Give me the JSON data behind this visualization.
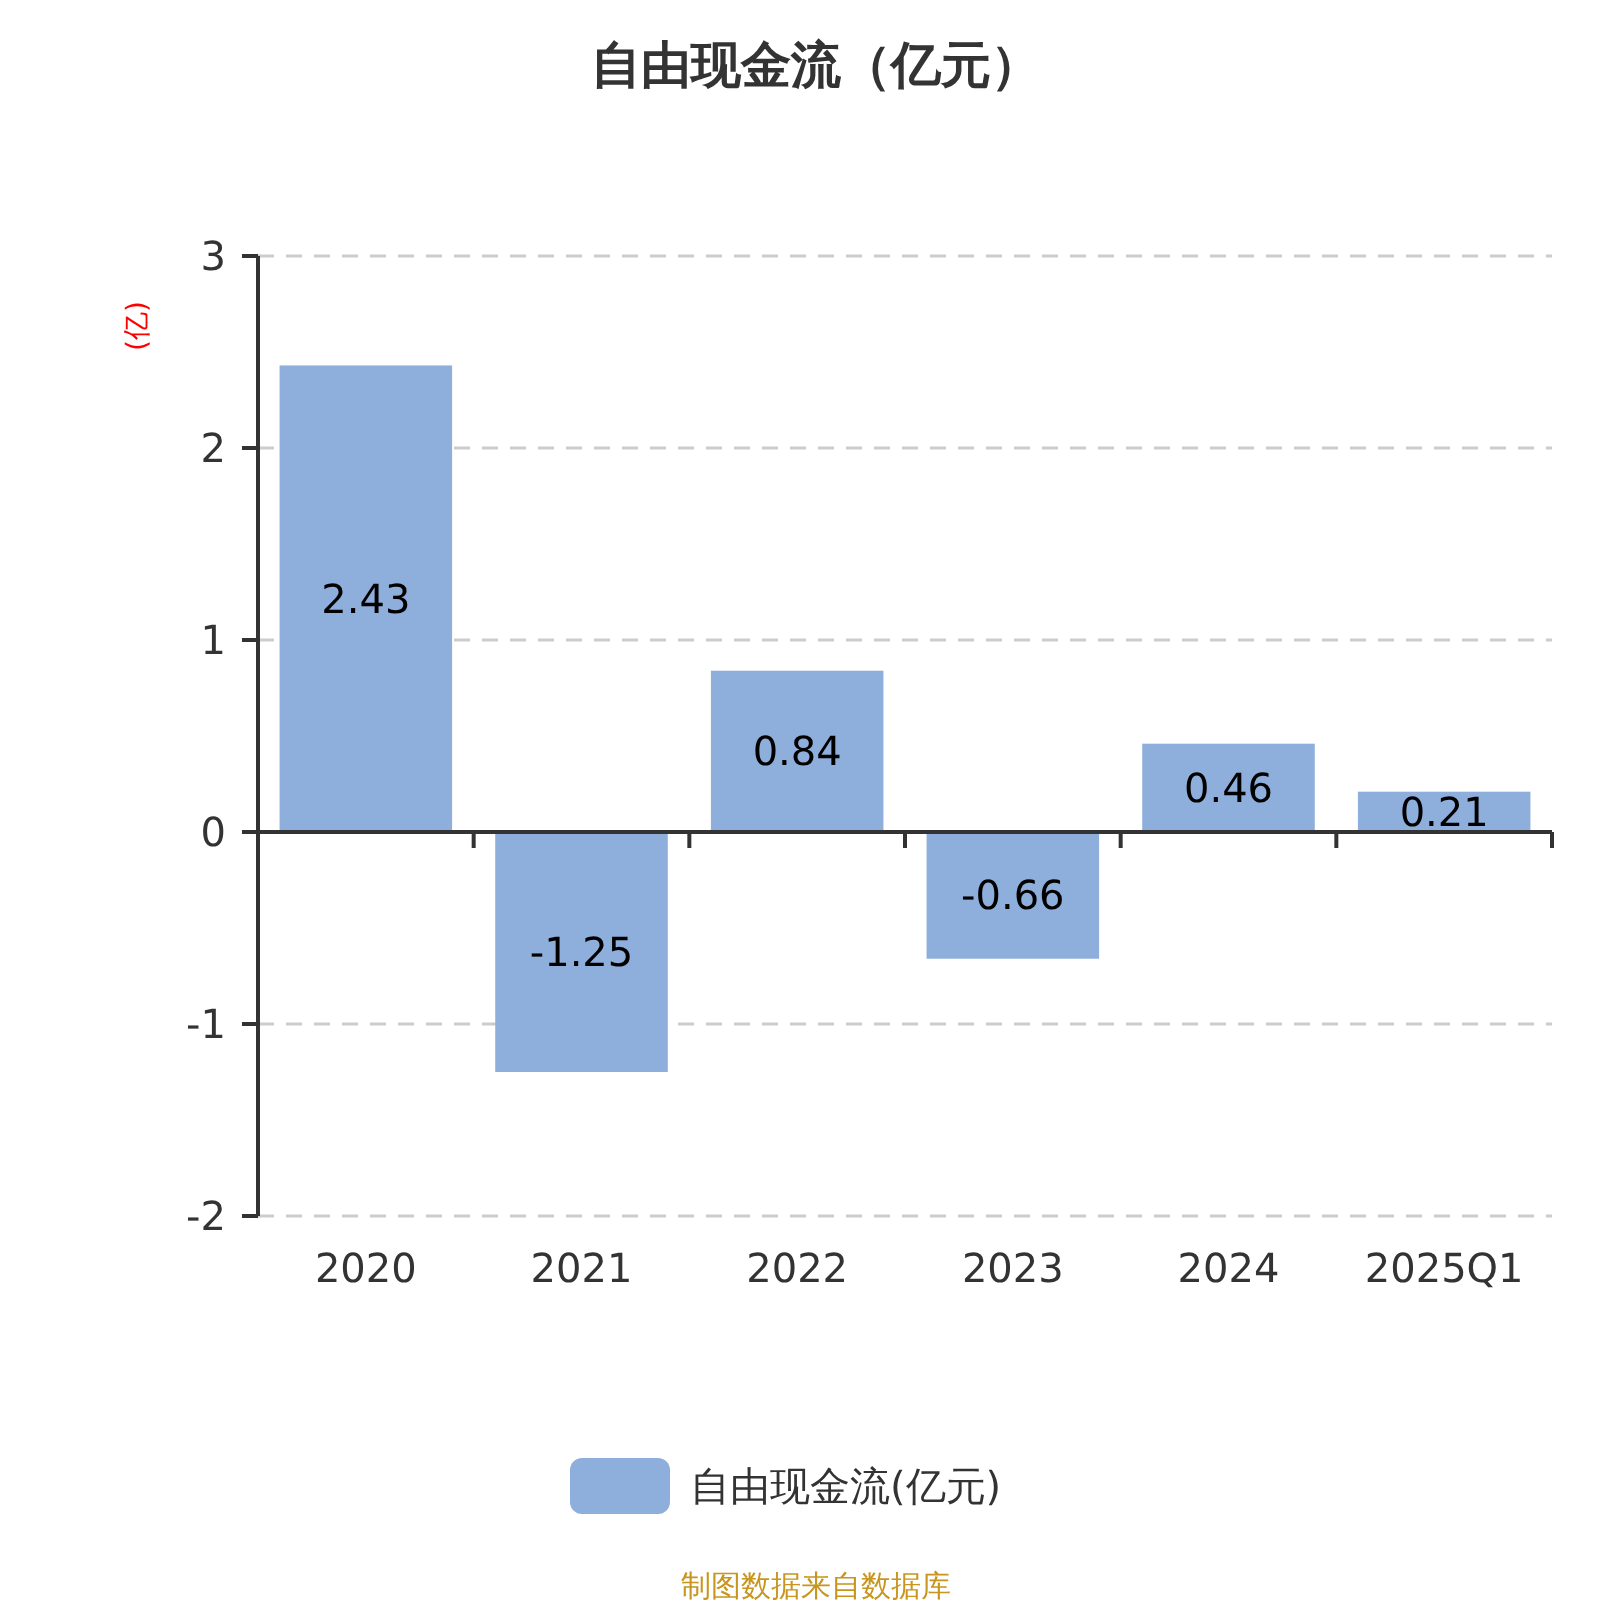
{
  "chart_data": {
    "type": "bar",
    "title": "自由现金流（亿元）",
    "ylabel": "(亿)",
    "categories": [
      "2020",
      "2021",
      "2022",
      "2023",
      "2024",
      "2025Q1"
    ],
    "series": [
      {
        "name": "自由现金流(亿元)",
        "color": "#8eaedb",
        "values": [
          2.43,
          -1.25,
          0.84,
          -0.66,
          0.46,
          0.21
        ]
      }
    ],
    "ylim": [
      -2,
      3
    ],
    "yticks": [
      -2,
      -1,
      0,
      1,
      2,
      3
    ],
    "grid": "y",
    "legend": "bottom",
    "data_labels": true,
    "annotations": [
      "制图数据来自数据库"
    ]
  }
}
